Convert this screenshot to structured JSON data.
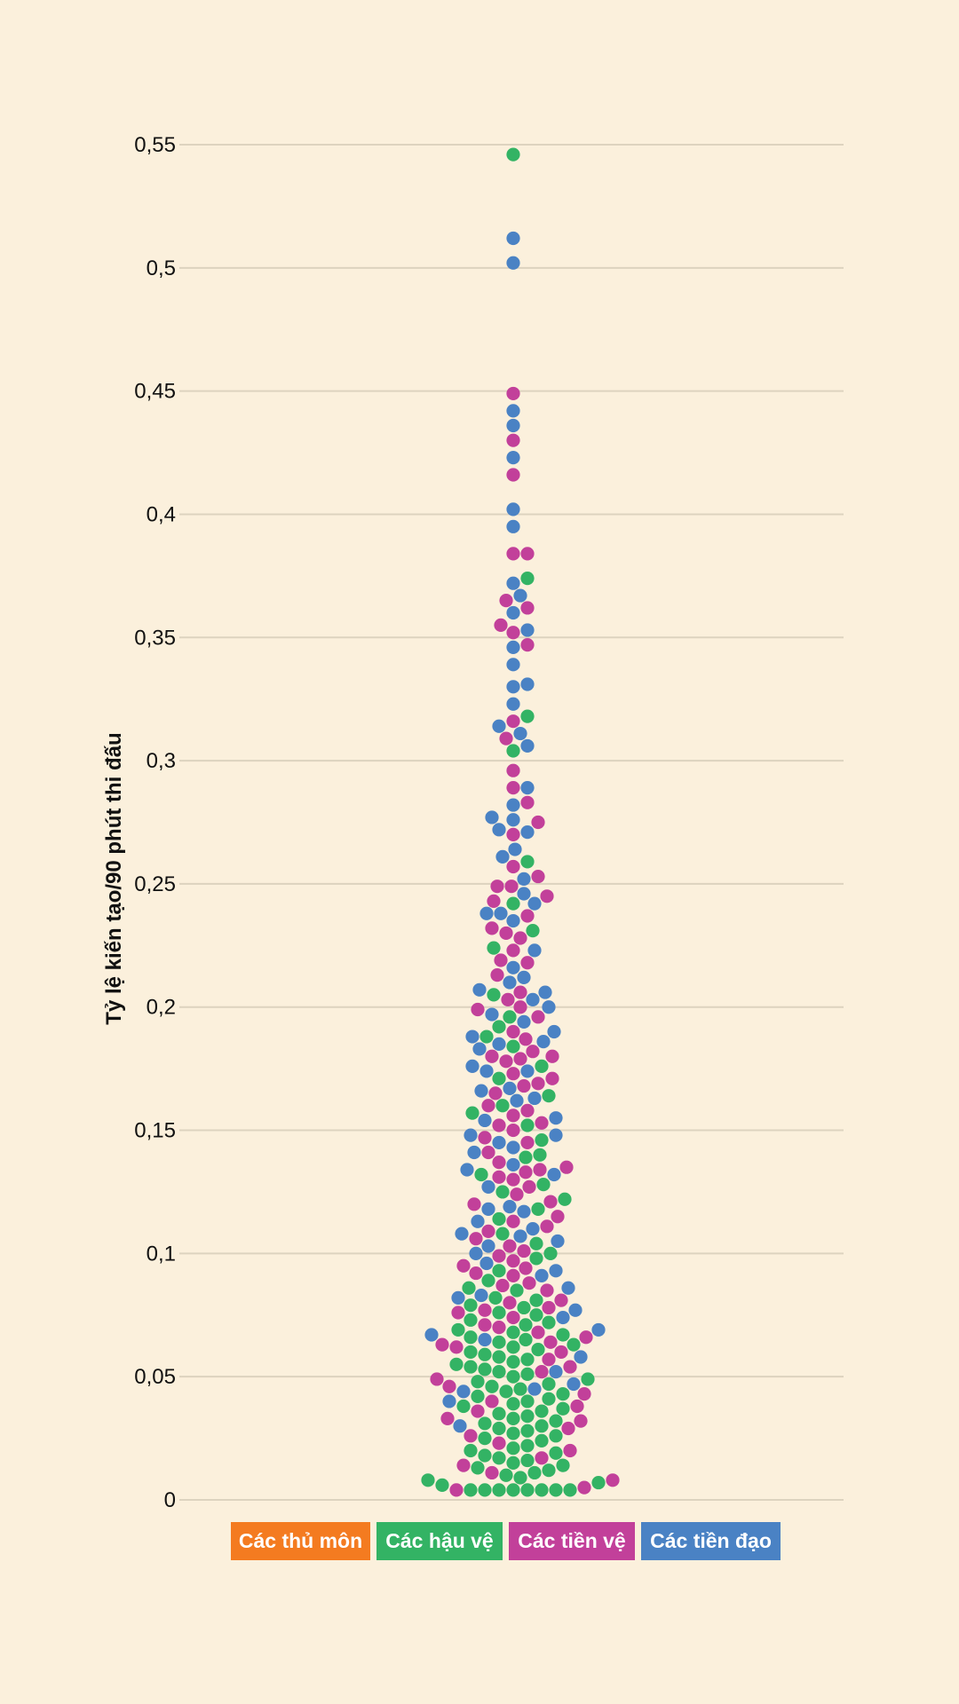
{
  "chart_data": {
    "type": "scatter",
    "subtype": "beeswarm",
    "ylabel": "Tỷ lệ kiến tạo/90 phút thi đấu",
    "ylim": [
      0,
      0.55
    ],
    "yticks": [
      {
        "value": 0,
        "label": "0"
      },
      {
        "value": 0.05,
        "label": "0,05"
      },
      {
        "value": 0.1,
        "label": "0,1"
      },
      {
        "value": 0.15,
        "label": "0,15"
      },
      {
        "value": 0.2,
        "label": "0,2"
      },
      {
        "value": 0.25,
        "label": "0,25"
      },
      {
        "value": 0.3,
        "label": "0,3"
      },
      {
        "value": 0.35,
        "label": "0,35"
      },
      {
        "value": 0.4,
        "label": "0,4"
      },
      {
        "value": 0.45,
        "label": "0,45"
      },
      {
        "value": 0.5,
        "label": "0,5"
      },
      {
        "value": 0.55,
        "label": "0,55"
      }
    ],
    "grid": true,
    "legend_position": "bottom",
    "series": [
      {
        "key": "gk",
        "name": "Các thủ môn",
        "color": "#f47b20",
        "values": []
      },
      {
        "key": "def",
        "name": "Các hậu vệ",
        "color": "#33b364",
        "values": [
          0.546,
          0.374,
          0.318,
          0.304,
          0.259,
          0.242,
          0.231,
          0.224,
          0.205,
          0.196,
          0.192,
          0.188,
          0.184,
          0.176,
          0.171,
          0.164,
          0.16,
          0.157,
          0.152,
          0.146,
          0.14,
          0.139,
          0.132,
          0.128,
          0.125,
          0.122,
          0.118,
          0.114,
          0.108,
          0.104,
          0.1,
          0.098,
          0.093,
          0.089,
          0.086,
          0.082,
          0.078,
          0.075,
          0.071,
          0.068,
          0.065,
          0.062,
          0.059,
          0.056,
          0.053,
          0.05,
          0.048,
          0.046,
          0.044,
          0.042,
          0.04,
          0.038,
          0.036,
          0.034,
          0.032,
          0.03,
          0.028,
          0.026,
          0.024,
          0.022,
          0.02,
          0.018,
          0.016,
          0.014,
          0.012,
          0.01,
          0.008,
          0.006,
          0.004,
          0.004,
          0.004,
          0.004,
          0.004,
          0.004,
          0.004,
          0.004,
          0.055,
          0.052,
          0.049,
          0.047,
          0.043,
          0.041,
          0.039,
          0.037,
          0.035,
          0.033,
          0.031,
          0.029,
          0.027,
          0.025,
          0.021,
          0.019,
          0.017,
          0.015,
          0.013,
          0.011,
          0.009,
          0.007,
          0.073,
          0.069,
          0.066,
          0.063,
          0.06,
          0.057,
          0.054,
          0.051,
          0.045,
          0.085,
          0.081,
          0.079,
          0.076,
          0.072,
          0.067,
          0.064,
          0.061,
          0.058
        ]
      },
      {
        "key": "mid",
        "name": "Các tiền vệ",
        "color": "#c2409a",
        "values": [
          0.449,
          0.43,
          0.416,
          0.384,
          0.384,
          0.365,
          0.362,
          0.355,
          0.352,
          0.347,
          0.316,
          0.309,
          0.296,
          0.289,
          0.283,
          0.275,
          0.27,
          0.257,
          0.253,
          0.249,
          0.249,
          0.245,
          0.243,
          0.237,
          0.232,
          0.23,
          0.228,
          0.223,
          0.219,
          0.218,
          0.213,
          0.206,
          0.203,
          0.2,
          0.199,
          0.196,
          0.19,
          0.187,
          0.182,
          0.18,
          0.18,
          0.179,
          0.178,
          0.173,
          0.171,
          0.169,
          0.168,
          0.165,
          0.16,
          0.158,
          0.156,
          0.153,
          0.152,
          0.15,
          0.147,
          0.145,
          0.141,
          0.137,
          0.135,
          0.134,
          0.133,
          0.131,
          0.13,
          0.127,
          0.124,
          0.121,
          0.12,
          0.115,
          0.113,
          0.111,
          0.109,
          0.106,
          0.103,
          0.101,
          0.099,
          0.097,
          0.095,
          0.092,
          0.091,
          0.088,
          0.085,
          0.08,
          0.078,
          0.076,
          0.074,
          0.071,
          0.07,
          0.068,
          0.064,
          0.063,
          0.06,
          0.057,
          0.054,
          0.052,
          0.049,
          0.046,
          0.043,
          0.04,
          0.036,
          0.033,
          0.029,
          0.026,
          0.023,
          0.02,
          0.017,
          0.014,
          0.011,
          0.008,
          0.005,
          0.004,
          0.094,
          0.087,
          0.081,
          0.077,
          0.066,
          0.062,
          0.038,
          0.032
        ]
      },
      {
        "key": "fwd",
        "name": "Các tiền đạo",
        "color": "#4a82c4",
        "values": [
          0.512,
          0.502,
          0.442,
          0.436,
          0.423,
          0.402,
          0.395,
          0.372,
          0.367,
          0.36,
          0.353,
          0.346,
          0.339,
          0.331,
          0.33,
          0.323,
          0.314,
          0.311,
          0.306,
          0.289,
          0.282,
          0.277,
          0.276,
          0.272,
          0.271,
          0.264,
          0.261,
          0.252,
          0.246,
          0.242,
          0.238,
          0.238,
          0.235,
          0.223,
          0.216,
          0.212,
          0.21,
          0.207,
          0.206,
          0.203,
          0.2,
          0.197,
          0.194,
          0.19,
          0.188,
          0.186,
          0.185,
          0.183,
          0.176,
          0.174,
          0.174,
          0.167,
          0.166,
          0.163,
          0.162,
          0.155,
          0.154,
          0.148,
          0.148,
          0.145,
          0.143,
          0.141,
          0.136,
          0.134,
          0.132,
          0.127,
          0.119,
          0.118,
          0.117,
          0.113,
          0.11,
          0.108,
          0.107,
          0.105,
          0.103,
          0.1,
          0.096,
          0.093,
          0.091,
          0.086,
          0.083,
          0.082,
          0.077,
          0.074,
          0.069,
          0.067,
          0.065,
          0.058,
          0.052,
          0.047,
          0.045,
          0.044,
          0.04,
          0.03
        ]
      }
    ]
  }
}
